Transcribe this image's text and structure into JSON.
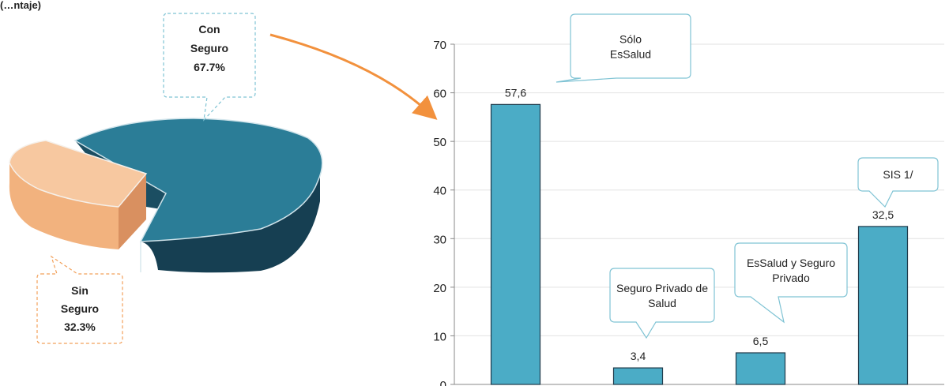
{
  "header": {
    "fragment": "(…ntaje)"
  },
  "colors": {
    "pie_main": "#2B7D97",
    "pie_main_dark": "#163F52",
    "pie_side": "#F2B27E",
    "pie_side_dark": "#D99060",
    "bar": "#4BACC6",
    "bar_stroke": "#1F3A4A",
    "callout_blue": "#7FC3D4",
    "callout_orange": "#F2A05A",
    "arrow": "#F2913D",
    "grid": "#E2E2E2"
  },
  "chart_data": [
    {
      "type": "pie",
      "slices": [
        {
          "label_line1": "Con",
          "label_line2": "Seguro",
          "value": 67.7,
          "value_label": "67.7%"
        },
        {
          "label_line1": "Sin",
          "label_line2": "Seguro",
          "value": 32.3,
          "value_label": "32.3%"
        }
      ]
    },
    {
      "type": "bar",
      "categories": [
        "Sólo EsSalud",
        "Seguro Privado de Salud",
        "EsSalud y Seguro Privado",
        "SIS 1/"
      ],
      "values": [
        57.6,
        3.4,
        6.5,
        32.5
      ],
      "value_labels": [
        "57,6",
        "3,4",
        "6,5",
        "32,5"
      ],
      "callouts": [
        {
          "line1": "Sólo",
          "line2": "EsSalud"
        },
        {
          "line1": "Seguro Privado de",
          "line2": "Salud"
        },
        {
          "line1": "EsSalud y Seguro",
          "line2": "Privado"
        },
        {
          "line1": "SIS  1/",
          "line2": ""
        }
      ],
      "ylim": [
        0,
        70
      ],
      "yticks": [
        "0",
        "10",
        "20",
        "30",
        "40",
        "50",
        "60",
        "70"
      ],
      "grid": true
    }
  ]
}
